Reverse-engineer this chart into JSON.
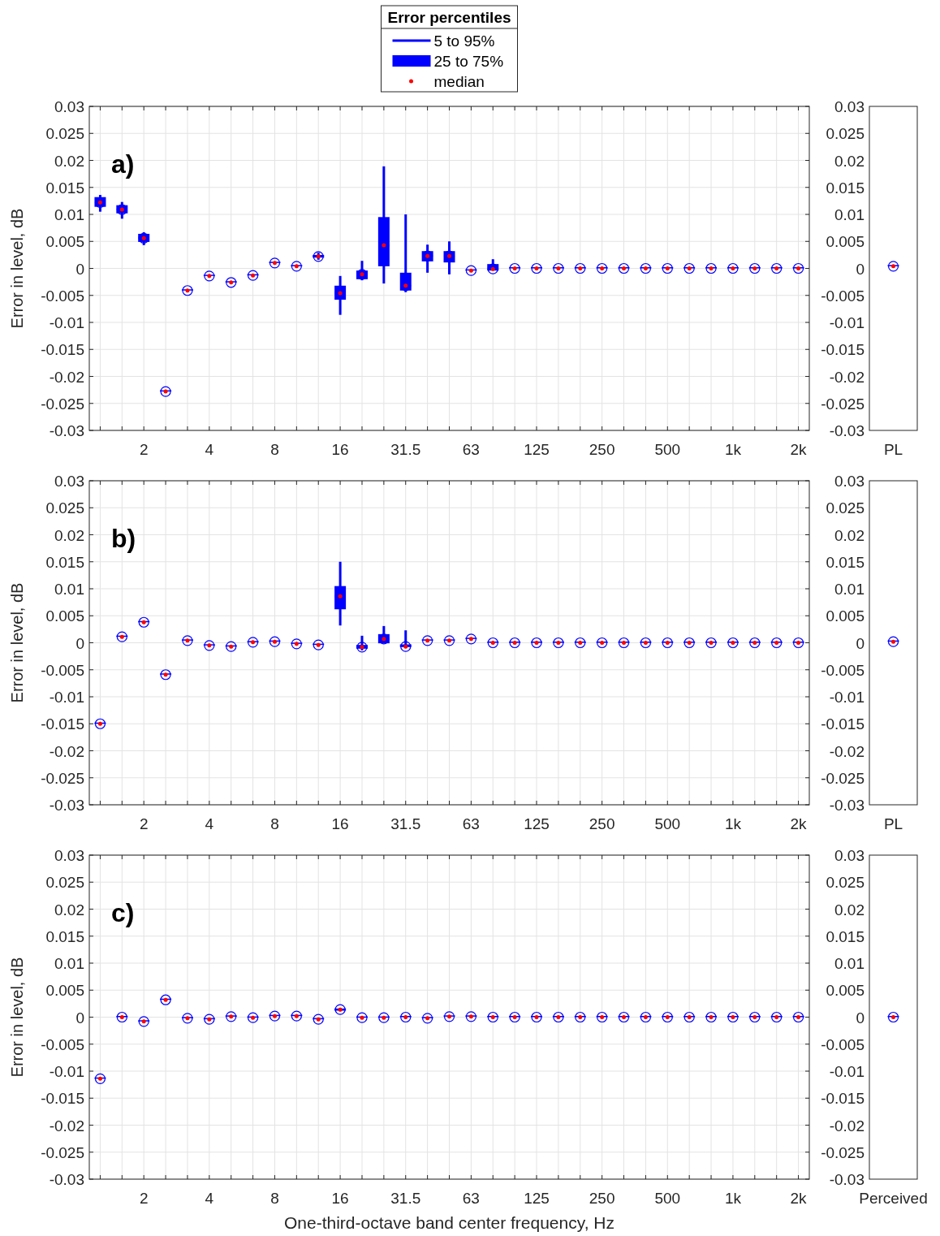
{
  "chart_data": [
    {
      "type": "box",
      "title": "a)",
      "ylabel": "Error in level, dB",
      "legend_title": "Error percentiles",
      "annotations": [
        "5 to 95%",
        "25 to 75%",
        "median"
      ],
      "grid": true,
      "categories": [
        null,
        null,
        "2",
        null,
        null,
        "4",
        null,
        null,
        "8",
        null,
        null,
        "16",
        null,
        null,
        "31.5",
        null,
        null,
        "63",
        null,
        null,
        "125",
        null,
        null,
        "250",
        null,
        null,
        "500",
        null,
        null,
        "1k",
        null,
        null,
        "2k"
      ],
      "ylim": [
        -0.03,
        0.03
      ],
      "yticks": [
        -0.03,
        -0.025,
        -0.02,
        -0.015,
        -0.01,
        -0.005,
        0,
        0.005,
        0.01,
        0.015,
        0.02,
        0.025,
        0.03
      ],
      "series": [
        {
          "color": "#0000ff",
          "boxes": [
            {
              "low": 0.0105,
              "q1": 0.0114,
              "median": 0.0122,
              "q3": 0.0132,
              "high": 0.0136
            },
            {
              "low": 0.0092,
              "q1": 0.0102,
              "median": 0.0109,
              "q3": 0.0117,
              "high": 0.0123
            },
            {
              "low": 0.0043,
              "q1": 0.0049,
              "median": 0.0056,
              "q3": 0.0064,
              "high": 0.0067
            },
            {
              "low": -0.0228,
              "q1": -0.0228,
              "median": -0.0228,
              "q3": -0.0228,
              "high": -0.0228
            },
            {
              "low": -0.0041,
              "q1": -0.0041,
              "median": -0.0041,
              "q3": -0.0041,
              "high": -0.0041
            },
            {
              "low": -0.0014,
              "q1": -0.0014,
              "median": -0.0014,
              "q3": -0.0014,
              "high": -0.0014
            },
            {
              "low": -0.0026,
              "q1": -0.0026,
              "median": -0.0026,
              "q3": -0.0026,
              "high": -0.0026
            },
            {
              "low": -0.0013,
              "q1": -0.0013,
              "median": -0.0013,
              "q3": -0.0013,
              "high": -0.0013
            },
            {
              "low": 0.001,
              "q1": 0.001,
              "median": 0.001,
              "q3": 0.001,
              "high": 0.001
            },
            {
              "low": 0.0004,
              "q1": 0.0004,
              "median": 0.0004,
              "q3": 0.0004,
              "high": 0.0004
            },
            {
              "low": 0.0016,
              "q1": 0.002,
              "median": 0.0022,
              "q3": 0.0025,
              "high": 0.0029
            },
            {
              "low": -0.0086,
              "q1": -0.0058,
              "median": -0.0046,
              "q3": -0.0032,
              "high": -0.0014
            },
            {
              "low": -0.0022,
              "q1": -0.002,
              "median": -0.0011,
              "q3": -0.0004,
              "high": 0.0014
            },
            {
              "low": -0.0028,
              "q1": 0.0004,
              "median": 0.0043,
              "q3": 0.0095,
              "high": 0.0189
            },
            {
              "low": -0.0044,
              "q1": -0.0041,
              "median": -0.0032,
              "q3": -0.0008,
              "high": 0.01
            },
            {
              "low": -0.0008,
              "q1": 0.0013,
              "median": 0.0023,
              "q3": 0.0032,
              "high": 0.0044
            },
            {
              "low": -0.0011,
              "q1": 0.0011,
              "median": 0.0023,
              "q3": 0.0032,
              "high": 0.005
            },
            {
              "low": -0.0004,
              "q1": -0.0004,
              "median": -0.0004,
              "q3": -0.0004,
              "high": -0.0004
            },
            {
              "low": -0.0004,
              "q1": -0.0004,
              "median": -0.0001,
              "q3": 0.0008,
              "high": 0.0017
            },
            {
              "low": 0,
              "q1": 0,
              "median": 0,
              "q3": 0,
              "high": 0
            },
            {
              "low": 0,
              "q1": 0,
              "median": 0,
              "q3": 0,
              "high": 0
            },
            {
              "low": 0,
              "q1": 0,
              "median": 0,
              "q3": 0,
              "high": 0
            },
            {
              "low": 0,
              "q1": 0,
              "median": 0,
              "q3": 0,
              "high": 0
            },
            {
              "low": 0,
              "q1": 0,
              "median": 0,
              "q3": 0,
              "high": 0
            },
            {
              "low": 0,
              "q1": 0,
              "median": 0,
              "q3": 0,
              "high": 0
            },
            {
              "low": 0,
              "q1": 0,
              "median": 0,
              "q3": 0,
              "high": 0
            },
            {
              "low": 0,
              "q1": 0,
              "median": 0,
              "q3": 0,
              "high": 0
            },
            {
              "low": 0,
              "q1": 0,
              "median": 0,
              "q3": 0,
              "high": 0
            },
            {
              "low": 0,
              "q1": 0,
              "median": 0,
              "q3": 0,
              "high": 0
            },
            {
              "low": 0,
              "q1": 0,
              "median": 0,
              "q3": 0,
              "high": 0
            },
            {
              "low": 0,
              "q1": 0,
              "median": 0,
              "q3": 0,
              "high": 0
            },
            {
              "low": 0,
              "q1": 0,
              "median": 0,
              "q3": 0,
              "high": 0
            },
            {
              "low": 0,
              "q1": 0,
              "median": 0,
              "q3": 0,
              "high": 0
            }
          ]
        }
      ]
    },
    {
      "type": "box",
      "categories": [
        "PL"
      ],
      "ylim": [
        -0.03,
        0.03
      ],
      "yticks": [
        -0.03,
        -0.025,
        -0.02,
        -0.015,
        -0.01,
        -0.005,
        0,
        0.005,
        0.01,
        0.015,
        0.02,
        0.025,
        0.03
      ],
      "series": [
        {
          "color": "#0000ff",
          "boxes": [
            {
              "low": 0.0004,
              "q1": 0.0004,
              "median": 0.0004,
              "q3": 0.0004,
              "high": 0.0004
            }
          ]
        }
      ]
    },
    {
      "type": "box",
      "title": "b)",
      "ylabel": "Error in level, dB",
      "grid": true,
      "categories": [
        null,
        null,
        "2",
        null,
        null,
        "4",
        null,
        null,
        "8",
        null,
        null,
        "16",
        null,
        null,
        "31.5",
        null,
        null,
        "63",
        null,
        null,
        "125",
        null,
        null,
        "250",
        null,
        null,
        "500",
        null,
        null,
        "1k",
        null,
        null,
        "2k"
      ],
      "ylim": [
        -0.03,
        0.03
      ],
      "yticks": [
        -0.03,
        -0.025,
        -0.02,
        -0.015,
        -0.01,
        -0.005,
        0,
        0.005,
        0.01,
        0.015,
        0.02,
        0.025,
        0.03
      ],
      "series": [
        {
          "color": "#0000ff",
          "boxes": [
            {
              "low": -0.015,
              "q1": -0.015,
              "median": -0.015,
              "q3": -0.015,
              "high": -0.015
            },
            {
              "low": 0.0011,
              "q1": 0.0011,
              "median": 0.0011,
              "q3": 0.0011,
              "high": 0.0011
            },
            {
              "low": 0.0038,
              "q1": 0.0038,
              "median": 0.0038,
              "q3": 0.0038,
              "high": 0.0038
            },
            {
              "low": -0.0059,
              "q1": -0.0059,
              "median": -0.0059,
              "q3": -0.0059,
              "high": -0.0059
            },
            {
              "low": 0.0004,
              "q1": 0.0004,
              "median": 0.0004,
              "q3": 0.0004,
              "high": 0.0004
            },
            {
              "low": -0.0005,
              "q1": -0.0005,
              "median": -0.0005,
              "q3": -0.0005,
              "high": -0.0005
            },
            {
              "low": -0.0007,
              "q1": -0.0007,
              "median": -0.0007,
              "q3": -0.0007,
              "high": -0.0007
            },
            {
              "low": 0.0001,
              "q1": 0.0001,
              "median": 0.0001,
              "q3": 0.0001,
              "high": 0.0001
            },
            {
              "low": 0.0002,
              "q1": 0.0002,
              "median": 0.0002,
              "q3": 0.0002,
              "high": 0.0002
            },
            {
              "low": -0.0002,
              "q1": -0.0002,
              "median": -0.0002,
              "q3": -0.0002,
              "high": -0.0002
            },
            {
              "low": -0.0004,
              "q1": -0.0004,
              "median": -0.0004,
              "q3": -0.0004,
              "high": -0.0004
            },
            {
              "low": 0.0032,
              "q1": 0.0062,
              "median": 0.0086,
              "q3": 0.0105,
              "high": 0.015
            },
            {
              "low": -0.0014,
              "q1": -0.0011,
              "median": -0.0008,
              "q3": -0.0004,
              "high": 0.0013
            },
            {
              "low": -0.0001,
              "q1": -0.0001,
              "median": 0.0007,
              "q3": 0.0016,
              "high": 0.0031
            },
            {
              "low": -0.0009,
              "q1": -0.0008,
              "median": -0.0007,
              "q3": -0.0003,
              "high": 0.0023
            },
            {
              "low": 0.0004,
              "q1": 0.0004,
              "median": 0.0004,
              "q3": 0.0004,
              "high": 0.0004
            },
            {
              "low": 0.0004,
              "q1": 0.0004,
              "median": 0.0004,
              "q3": 0.0004,
              "high": 0.0004
            },
            {
              "low": 0.0007,
              "q1": 0.0007,
              "median": 0.0007,
              "q3": 0.0007,
              "high": 0.0007
            },
            {
              "low": 0,
              "q1": 0,
              "median": 0,
              "q3": 0,
              "high": 0
            },
            {
              "low": 0,
              "q1": 0,
              "median": 0,
              "q3": 0,
              "high": 0
            },
            {
              "low": 0,
              "q1": 0,
              "median": 0,
              "q3": 0,
              "high": 0
            },
            {
              "low": 0,
              "q1": 0,
              "median": 0,
              "q3": 0,
              "high": 0
            },
            {
              "low": 0,
              "q1": 0,
              "median": 0,
              "q3": 0,
              "high": 0
            },
            {
              "low": 0,
              "q1": 0,
              "median": 0,
              "q3": 0,
              "high": 0
            },
            {
              "low": 0,
              "q1": 0,
              "median": 0,
              "q3": 0,
              "high": 0
            },
            {
              "low": 0,
              "q1": 0,
              "median": 0,
              "q3": 0,
              "high": 0
            },
            {
              "low": 0,
              "q1": 0,
              "median": 0,
              "q3": 0,
              "high": 0
            },
            {
              "low": 0,
              "q1": 0,
              "median": 0,
              "q3": 0,
              "high": 0
            },
            {
              "low": 0,
              "q1": 0,
              "median": 0,
              "q3": 0,
              "high": 0
            },
            {
              "low": 0,
              "q1": 0,
              "median": 0,
              "q3": 0,
              "high": 0
            },
            {
              "low": 0,
              "q1": 0,
              "median": 0,
              "q3": 0,
              "high": 0
            },
            {
              "low": 0,
              "q1": 0,
              "median": 0,
              "q3": 0,
              "high": 0
            },
            {
              "low": 0,
              "q1": 0,
              "median": 0,
              "q3": 0,
              "high": 0
            }
          ]
        }
      ]
    },
    {
      "type": "box",
      "categories": [
        "PL"
      ],
      "ylim": [
        -0.03,
        0.03
      ],
      "yticks": [
        -0.03,
        -0.025,
        -0.02,
        -0.015,
        -0.01,
        -0.005,
        0,
        0.005,
        0.01,
        0.015,
        0.02,
        0.025,
        0.03
      ],
      "series": [
        {
          "color": "#0000ff",
          "boxes": [
            {
              "low": 0.0002,
              "q1": 0.0002,
              "median": 0.0002,
              "q3": 0.0002,
              "high": 0.0002
            }
          ]
        }
      ]
    },
    {
      "type": "box",
      "title": "c)",
      "ylabel": "Error in level, dB",
      "xlabel": "One-third-octave band center frequency, Hz",
      "grid": true,
      "categories": [
        null,
        null,
        "2",
        null,
        null,
        "4",
        null,
        null,
        "8",
        null,
        null,
        "16",
        null,
        null,
        "31.5",
        null,
        null,
        "63",
        null,
        null,
        "125",
        null,
        null,
        "250",
        null,
        null,
        "500",
        null,
        null,
        "1k",
        null,
        null,
        "2k"
      ],
      "ylim": [
        -0.03,
        0.03
      ],
      "yticks": [
        -0.03,
        -0.025,
        -0.02,
        -0.015,
        -0.01,
        -0.005,
        0,
        0.005,
        0.01,
        0.015,
        0.02,
        0.025,
        0.03
      ],
      "series": [
        {
          "color": "#0000ff",
          "boxes": [
            {
              "low": -0.0114,
              "q1": -0.0114,
              "median": -0.0114,
              "q3": -0.0114,
              "high": -0.0114
            },
            {
              "low": 0,
              "q1": 0,
              "median": 0,
              "q3": 0,
              "high": 0
            },
            {
              "low": -0.0008,
              "q1": -0.0008,
              "median": -0.0008,
              "q3": -0.0008,
              "high": -0.0008
            },
            {
              "low": 0.0032,
              "q1": 0.0032,
              "median": 0.0032,
              "q3": 0.0032,
              "high": 0.0032
            },
            {
              "low": -0.0002,
              "q1": -0.0002,
              "median": -0.0002,
              "q3": -0.0002,
              "high": -0.0002
            },
            {
              "low": -0.0004,
              "q1": -0.0004,
              "median": -0.0004,
              "q3": -0.0004,
              "high": -0.0004
            },
            {
              "low": 0.0001,
              "q1": 0.0001,
              "median": 0.0001,
              "q3": 0.0001,
              "high": 0.0001
            },
            {
              "low": -0.0001,
              "q1": -0.0001,
              "median": -0.0001,
              "q3": -0.0001,
              "high": -0.0001
            },
            {
              "low": 0.0002,
              "q1": 0.0002,
              "median": 0.0002,
              "q3": 0.0002,
              "high": 0.0002
            },
            {
              "low": 0.0002,
              "q1": 0.0002,
              "median": 0.0002,
              "q3": 0.0002,
              "high": 0.0002
            },
            {
              "low": -0.0004,
              "q1": -0.0004,
              "median": -0.0004,
              "q3": -0.0004,
              "high": -0.0004
            },
            {
              "low": 0.0011,
              "q1": 0.0012,
              "median": 0.0014,
              "q3": 0.0016,
              "high": 0.0017
            },
            {
              "low": -0.0001,
              "q1": -0.0001,
              "median": -0.0001,
              "q3": -0.0001,
              "high": -0.0001
            },
            {
              "low": -0.0001,
              "q1": -0.0001,
              "median": -0.0001,
              "q3": -0.0001,
              "high": -0.0001
            },
            {
              "low": 0,
              "q1": 0,
              "median": 0,
              "q3": 0,
              "high": 0
            },
            {
              "low": -0.0002,
              "q1": -0.0002,
              "median": -0.0002,
              "q3": -0.0002,
              "high": -0.0002
            },
            {
              "low": 0.0001,
              "q1": 0.0001,
              "median": 0.0001,
              "q3": 0.0001,
              "high": 0.0001
            },
            {
              "low": 0.0001,
              "q1": 0.0001,
              "median": 0.0001,
              "q3": 0.0001,
              "high": 0.0001
            },
            {
              "low": 0,
              "q1": 0,
              "median": 0,
              "q3": 0,
              "high": 0
            },
            {
              "low": 0,
              "q1": 0,
              "median": 0,
              "q3": 0,
              "high": 0
            },
            {
              "low": 0,
              "q1": 0,
              "median": 0,
              "q3": 0,
              "high": 0
            },
            {
              "low": 0,
              "q1": 0,
              "median": 0,
              "q3": 0,
              "high": 0
            },
            {
              "low": 0,
              "q1": 0,
              "median": 0,
              "q3": 0,
              "high": 0
            },
            {
              "low": 0,
              "q1": 0,
              "median": 0,
              "q3": 0,
              "high": 0
            },
            {
              "low": 0,
              "q1": 0,
              "median": 0,
              "q3": 0,
              "high": 0
            },
            {
              "low": 0,
              "q1": 0,
              "median": 0,
              "q3": 0,
              "high": 0
            },
            {
              "low": 0,
              "q1": 0,
              "median": 0,
              "q3": 0,
              "high": 0
            },
            {
              "low": 0,
              "q1": 0,
              "median": 0,
              "q3": 0,
              "high": 0
            },
            {
              "low": 0,
              "q1": 0,
              "median": 0,
              "q3": 0,
              "high": 0
            },
            {
              "low": 0,
              "q1": 0,
              "median": 0,
              "q3": 0,
              "high": 0
            },
            {
              "low": 0,
              "q1": 0,
              "median": 0,
              "q3": 0,
              "high": 0
            },
            {
              "low": 0,
              "q1": 0,
              "median": 0,
              "q3": 0,
              "high": 0
            },
            {
              "low": 0,
              "q1": 0,
              "median": 0,
              "q3": 0,
              "high": 0
            }
          ]
        }
      ]
    },
    {
      "type": "box",
      "categories": [
        "Perceived"
      ],
      "ylim": [
        -0.03,
        0.03
      ],
      "yticks": [
        -0.03,
        -0.025,
        -0.02,
        -0.015,
        -0.01,
        -0.005,
        0,
        0.005,
        0.01,
        0.015,
        0.02,
        0.025,
        0.03
      ],
      "series": [
        {
          "color": "#0000ff",
          "boxes": [
            {
              "low": 0,
              "q1": 0,
              "median": 0,
              "q3": 0,
              "high": 0
            }
          ]
        }
      ]
    }
  ]
}
